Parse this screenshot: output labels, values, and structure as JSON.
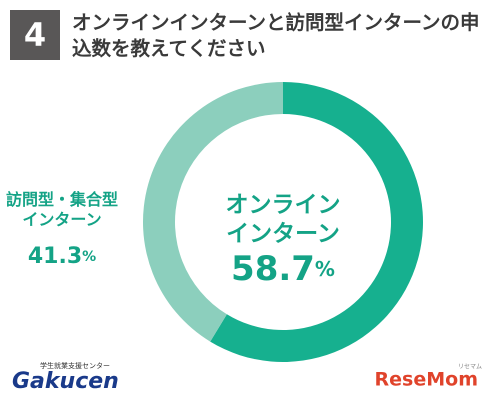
{
  "chart_data": {
    "type": "pie",
    "donut": true,
    "number": "4",
    "title": "オンラインインターンと訪問型インターンの申込数を教えてください",
    "categories": [
      "オンライン\nインターン",
      "訪問型・集合型\nインターン"
    ],
    "values": [
      58.7,
      41.3
    ],
    "value_labels": [
      "58.7%",
      "41.3%"
    ],
    "colors": [
      "#16b08f",
      "#8ccfbd"
    ]
  },
  "logos": {
    "left": "Gakucen",
    "left_sub": "学生就業支援センター",
    "right": "ReseMom",
    "right_sub": "リセマム"
  }
}
